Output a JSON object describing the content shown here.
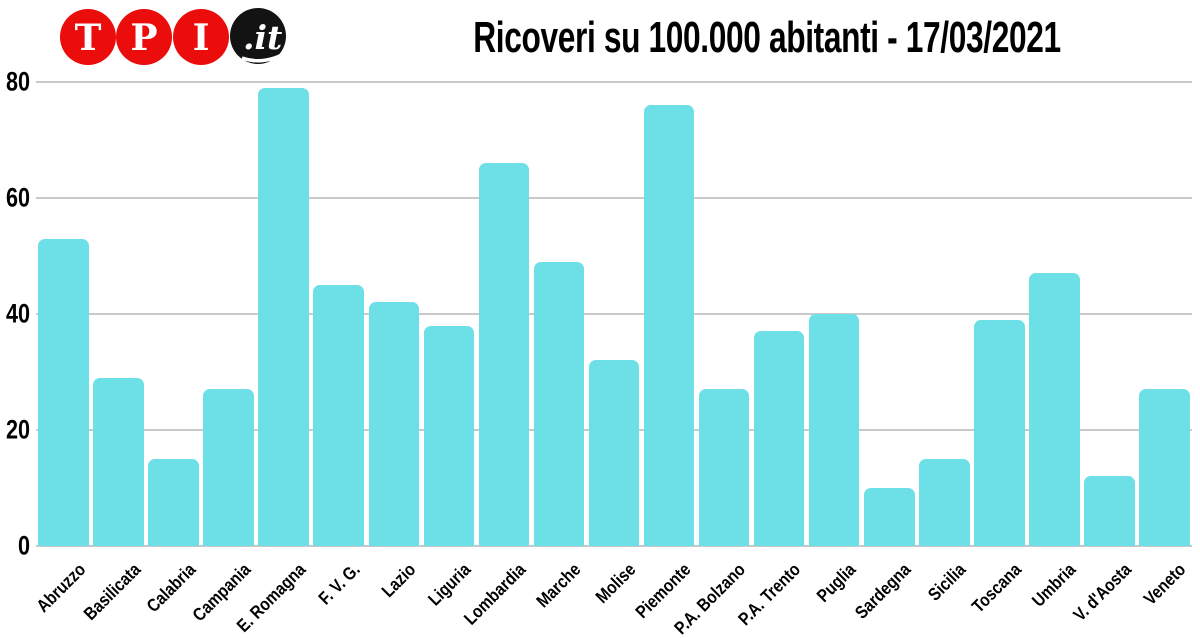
{
  "logo": {
    "letters": [
      "T",
      "P",
      "I"
    ],
    "suffix": ".it",
    "red": "#EB0C0C",
    "black": "#131313",
    "white": "#FFFFFF"
  },
  "title": "Ricoveri su 100.000 abitanti - 17/03/2021",
  "chart_data": {
    "type": "bar",
    "title": "Ricoveri su 100.000 abitanti - 17/03/2021",
    "categories": [
      "Abruzzo",
      "Basilicata",
      "Calabria",
      "Campania",
      "E. Romagna",
      "F. V. G.",
      "Lazio",
      "Liguria",
      "Lombardia",
      "Marche",
      "Molise",
      "Piemonte",
      "P.A. Bolzano",
      "P.A. Trento",
      "Puglia",
      "Sardegna",
      "Sicilia",
      "Toscana",
      "Umbria",
      "V. d'Aosta",
      "Veneto"
    ],
    "values": [
      53,
      29,
      15,
      27,
      79,
      45,
      42,
      38,
      66,
      49,
      32,
      76,
      27,
      37,
      40,
      10,
      15,
      39,
      47,
      12,
      27
    ],
    "xlabel": "",
    "ylabel": "",
    "ylim": [
      0,
      80
    ],
    "yticks": [
      0,
      20,
      40,
      60,
      80
    ],
    "grid": true,
    "legend": "none",
    "bar_color": "#6CE0E6",
    "gridline_color": "#C9C9C9",
    "text_color": "#000000"
  }
}
